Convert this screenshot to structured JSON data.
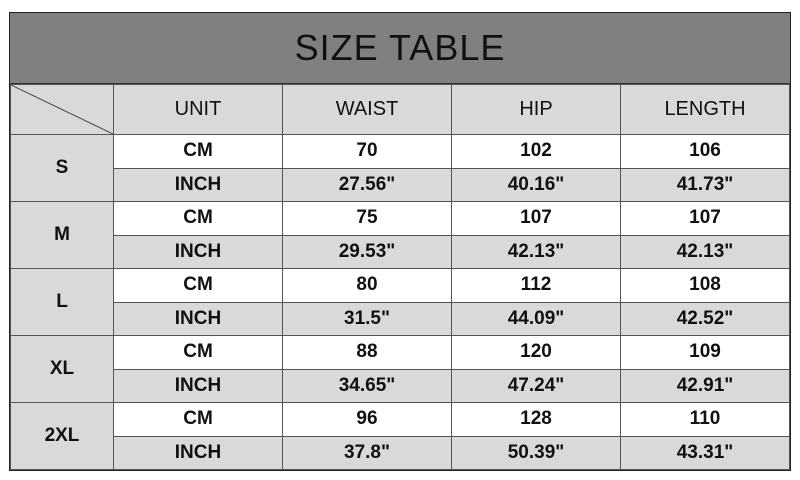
{
  "title": "SIZE TABLE",
  "headers": [
    "UNIT",
    "WAIST",
    "HIP",
    "LENGTH"
  ],
  "rows": [
    {
      "size": "S",
      "cm": [
        "CM",
        "70",
        "102",
        "106"
      ],
      "inch": [
        "INCH",
        "27.56\"",
        "40.16\"",
        "41.73\""
      ]
    },
    {
      "size": "M",
      "cm": [
        "CM",
        "75",
        "107",
        "107"
      ],
      "inch": [
        "INCH",
        "29.53\"",
        "42.13\"",
        "42.13\""
      ]
    },
    {
      "size": "L",
      "cm": [
        "CM",
        "80",
        "112",
        "108"
      ],
      "inch": [
        "INCH",
        "31.5\"",
        "44.09\"",
        "42.52\""
      ]
    },
    {
      "size": "XL",
      "cm": [
        "CM",
        "88",
        "120",
        "109"
      ],
      "inch": [
        "INCH",
        "34.65\"",
        "47.24\"",
        "42.91\""
      ]
    },
    {
      "size": "2XL",
      "cm": [
        "CM",
        "96",
        "128",
        "110"
      ],
      "inch": [
        "INCH",
        "37.8\"",
        "50.39\"",
        "43.31\""
      ]
    }
  ]
}
